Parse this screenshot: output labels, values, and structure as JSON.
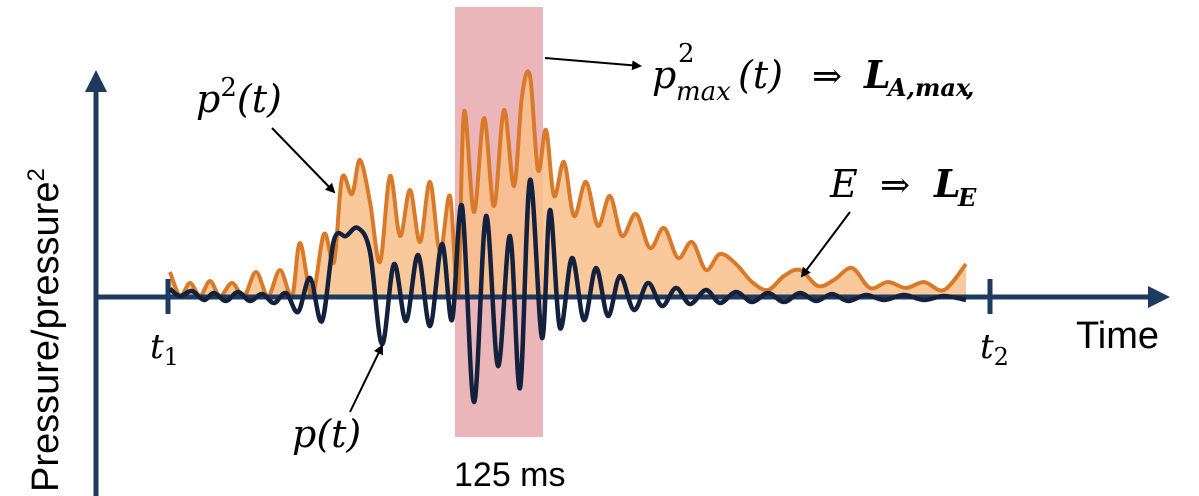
{
  "axes": {
    "y_label": "Pressure/pressure",
    "y_label_sup": "2",
    "x_label": "Time"
  },
  "markers": {
    "t1": {
      "base": "t",
      "sub": "1"
    },
    "t2": {
      "base": "t",
      "sub": "2"
    }
  },
  "window": {
    "label": "125 ms"
  },
  "labels": {
    "p2": {
      "base": "p",
      "sup": "2",
      "arg": "(t)"
    },
    "p": {
      "base": "p",
      "arg": "(t)"
    },
    "pmax": {
      "base": "p",
      "sup": "2",
      "sub": "max",
      "arg": "(t)",
      "arrow": "⇒",
      "result": "L",
      "result_sub": "A,max",
      "trail": ","
    },
    "energy": {
      "base": "E",
      "arrow": "⇒",
      "result": "L",
      "result_sub": "E"
    }
  },
  "colors": {
    "axis": "#1f3a5f",
    "pressure": "#14213d",
    "squared_line": "#d97a2b",
    "squared_fill": "#f9c08a",
    "window": "#e8a9ad"
  }
}
